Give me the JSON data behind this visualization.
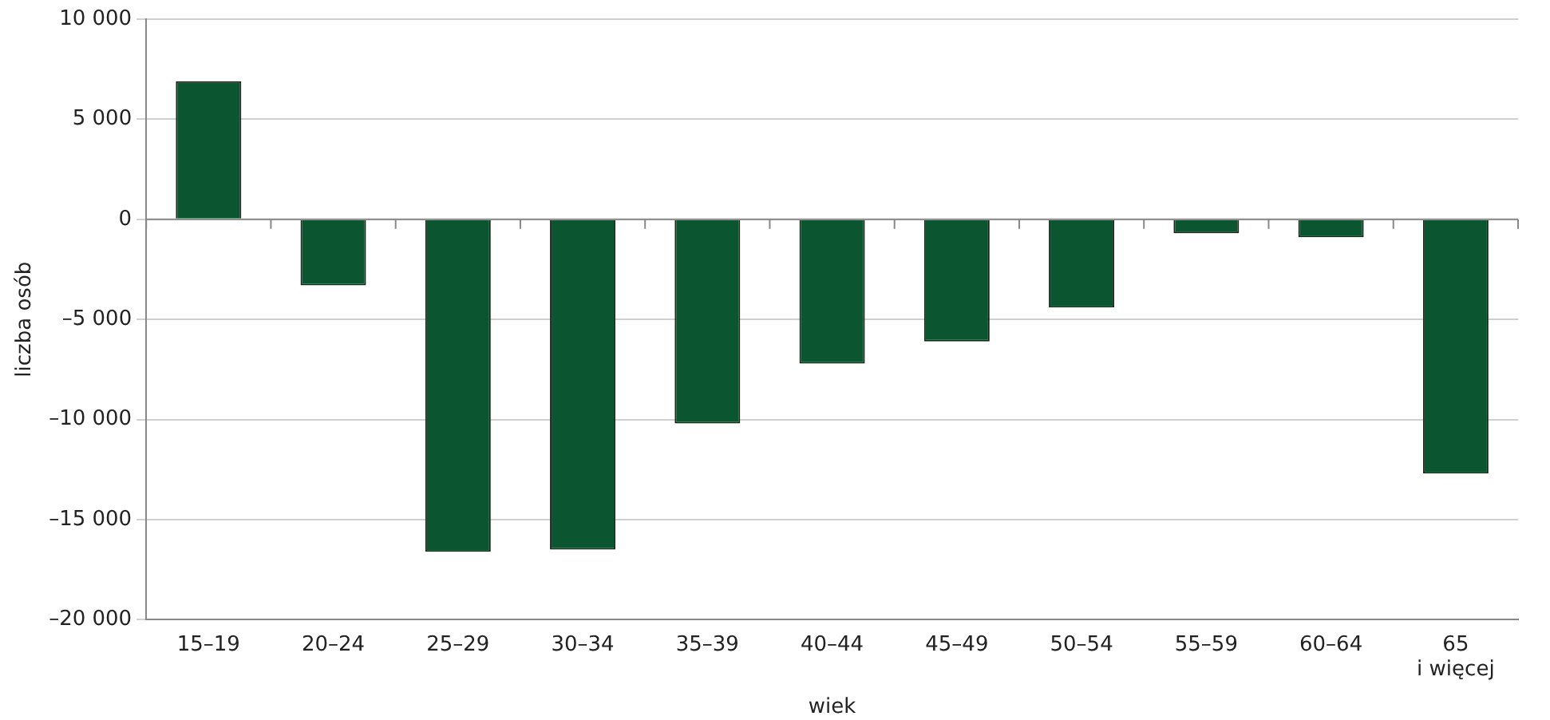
{
  "chart_data": {
    "type": "bar",
    "xlabel": "wiek",
    "ylabel": "liczba osób",
    "categories": [
      "15–19",
      "20–24",
      "25–29",
      "30–34",
      "35–39",
      "40–44",
      "45–49",
      "50–54",
      "55–59",
      "60–64",
      "65\ni więcej"
    ],
    "values": [
      6900,
      -3300,
      -16600,
      -16500,
      -10200,
      -7200,
      -6100,
      -4400,
      -700,
      -900,
      -12700
    ],
    "color": "#0b5631",
    "ylim": [
      -20000,
      10000
    ],
    "yticks": [
      {
        "value": -20000,
        "label": "–20 000"
      },
      {
        "value": -15000,
        "label": "–15 000"
      },
      {
        "value": -10000,
        "label": "–10 000"
      },
      {
        "value": -5000,
        "label": "–5 000"
      },
      {
        "value": 0,
        "label": "0"
      },
      {
        "value": 5000,
        "label": "5 000"
      },
      {
        "value": 10000,
        "label": "10 000"
      }
    ],
    "grid": "y",
    "legend": false
  }
}
